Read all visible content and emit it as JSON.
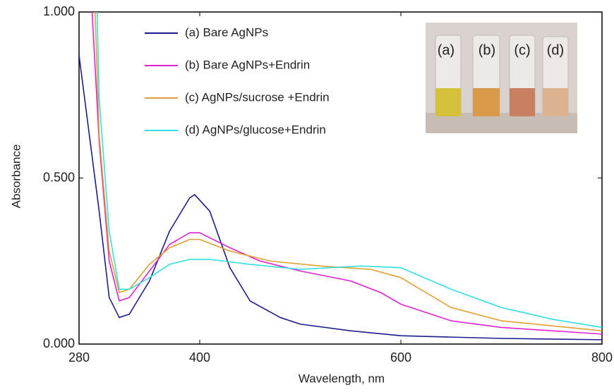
{
  "chart_data": {
    "type": "line",
    "x_label": "Wavelength, nm",
    "y_label": "Absorbance",
    "xlim": [
      280,
      800
    ],
    "xticks": [
      280,
      400,
      600,
      800
    ],
    "ylim": [
      0,
      1.0
    ],
    "yticks": [
      {
        "value": 0,
        "label": "0.000"
      },
      {
        "value": 0.5,
        "label": "0.500"
      },
      {
        "value": 1.0,
        "label": "1.000"
      }
    ],
    "legend": "upper left",
    "series": [
      {
        "name": "(a) Bare AgNPs",
        "color": "#1c1c8e",
        "x": [
          280,
          300,
          310,
          320,
          330,
          350,
          370,
          390,
          395,
          410,
          430,
          450,
          480,
          500,
          550,
          600,
          700,
          800
        ],
        "values": [
          0.87,
          0.4,
          0.14,
          0.08,
          0.09,
          0.19,
          0.34,
          0.44,
          0.45,
          0.4,
          0.23,
          0.13,
          0.08,
          0.06,
          0.04,
          0.025,
          0.017,
          0.013
        ]
      },
      {
        "name": "(b) Bare AgNPs+Endrin",
        "color": "#e020d0",
        "x": [
          293,
          300,
          310,
          320,
          330,
          350,
          370,
          390,
          400,
          430,
          460,
          500,
          550,
          580,
          600,
          650,
          700,
          800
        ],
        "values": [
          1.0,
          0.61,
          0.25,
          0.13,
          0.14,
          0.22,
          0.3,
          0.335,
          0.335,
          0.29,
          0.25,
          0.22,
          0.19,
          0.155,
          0.12,
          0.07,
          0.05,
          0.03
        ]
      },
      {
        "name": "(c) AgNPs/sucrose +Endrin",
        "color": "#e0a030",
        "x": [
          296,
          300,
          310,
          320,
          330,
          350,
          370,
          390,
          400,
          430,
          470,
          520,
          570,
          600,
          650,
          700,
          800
        ],
        "values": [
          1.0,
          0.63,
          0.28,
          0.155,
          0.165,
          0.24,
          0.29,
          0.315,
          0.315,
          0.28,
          0.25,
          0.235,
          0.225,
          0.2,
          0.11,
          0.07,
          0.04
        ]
      },
      {
        "name": "(d) AgNPs/glucose+Endrin",
        "color": "#30e0e0",
        "x": [
          298,
          300,
          310,
          320,
          330,
          350,
          370,
          390,
          410,
          450,
          500,
          560,
          600,
          650,
          700,
          750,
          800
        ],
        "values": [
          1.0,
          0.74,
          0.34,
          0.165,
          0.165,
          0.2,
          0.24,
          0.255,
          0.255,
          0.24,
          0.225,
          0.235,
          0.23,
          0.165,
          0.11,
          0.075,
          0.05
        ]
      }
    ],
    "inset_labels": [
      "(a)",
      "(b)",
      "(c)",
      "(d)"
    ]
  }
}
